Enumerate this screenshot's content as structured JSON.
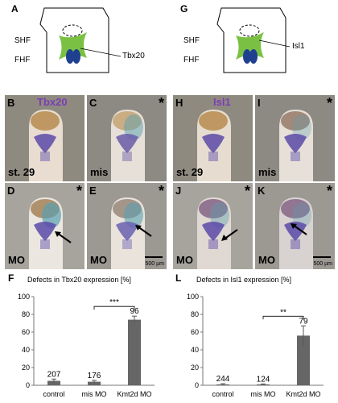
{
  "left": {
    "schematic": {
      "panel": "A",
      "shf": "SHF",
      "fhf": "FHF",
      "gene_label": "Tbx20"
    },
    "photos": [
      {
        "panel": "B",
        "gene": "Tbx20",
        "bottom": "st. 29",
        "star": ""
      },
      {
        "panel": "C",
        "gene": "",
        "bottom": "mis",
        "star": "*"
      },
      {
        "panel": "D",
        "gene": "",
        "bottom": "MO",
        "star": "*"
      },
      {
        "panel": "E",
        "gene": "",
        "bottom": "MO",
        "star": "*",
        "scale": "500 µm"
      }
    ],
    "chart_panel": "F"
  },
  "right": {
    "schematic": {
      "panel": "G",
      "shf": "SHF",
      "fhf": "FHF",
      "gene_label": "Isl1"
    },
    "photos": [
      {
        "panel": "H",
        "gene": "Isl1",
        "bottom": "st. 29",
        "star": ""
      },
      {
        "panel": "I",
        "gene": "",
        "bottom": "mis",
        "star": "*"
      },
      {
        "panel": "J",
        "gene": "",
        "bottom": "MO",
        "star": "*"
      },
      {
        "panel": "K",
        "gene": "",
        "bottom": "MO",
        "star": "*",
        "scale": "500 µm"
      }
    ],
    "chart_panel": "L"
  },
  "colors": {
    "bar": "#666666",
    "heart": "#1f3f8f",
    "field": "#7ac143",
    "stain": "#5a4aa8"
  },
  "chart_data": [
    {
      "type": "bar",
      "title": "Defects in Tbx20 expression [%]",
      "categories": [
        "control",
        "mis MO",
        "Kmt2d MO"
      ],
      "values": [
        5,
        4,
        74
      ],
      "errors": [
        2,
        1.5,
        4
      ],
      "n_labels": [
        "207",
        "176",
        "96"
      ],
      "significance": {
        "between": [
          "mis MO",
          "Kmt2d MO"
        ],
        "label": "***"
      },
      "yticks": [
        "0",
        "20",
        "40",
        "60",
        "80",
        "100"
      ],
      "ylim": [
        0,
        100
      ]
    },
    {
      "type": "bar",
      "title": "Defects in Isl1 expression [%]",
      "categories": [
        "control",
        "mis MO",
        "Kmt2d MO"
      ],
      "values": [
        1,
        1,
        56
      ],
      "errors": [
        0.8,
        0.5,
        11
      ],
      "n_labels": [
        "244",
        "124",
        "79"
      ],
      "significance": {
        "between": [
          "mis MO",
          "Kmt2d MO"
        ],
        "label": "**"
      },
      "yticks": [
        "0",
        "20",
        "40",
        "60",
        "80",
        "100"
      ],
      "ylim": [
        0,
        100
      ]
    }
  ]
}
